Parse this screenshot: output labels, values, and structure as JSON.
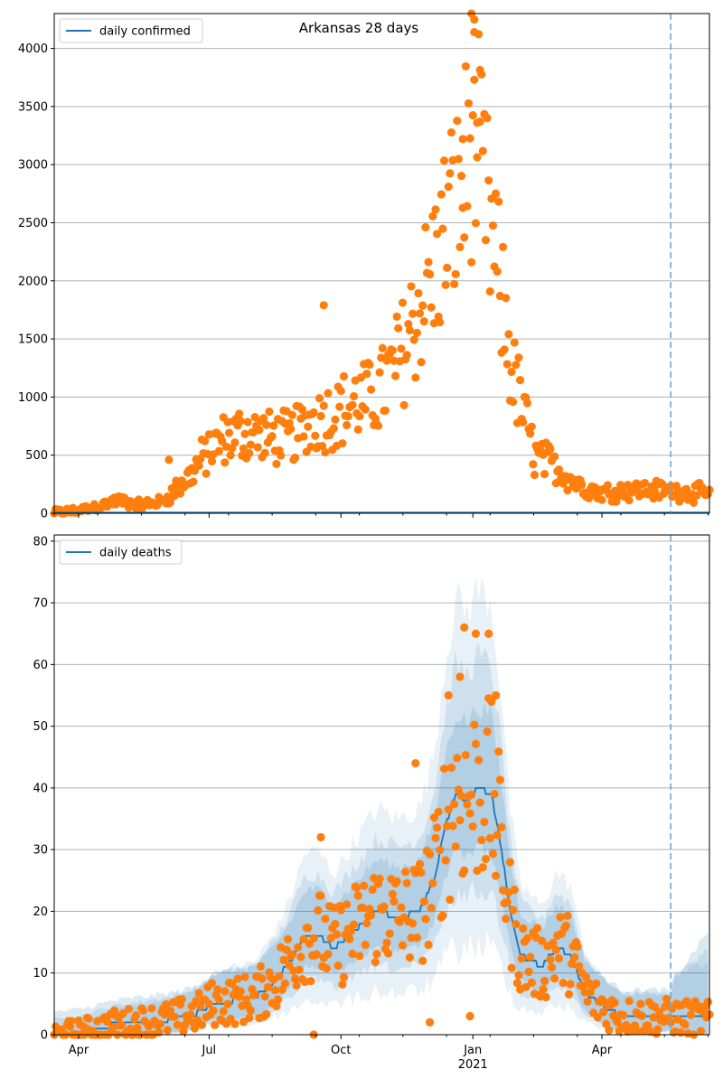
{
  "colors": {
    "line": "#1f77b4",
    "points": "#ff7f0e",
    "band": "#1f77b4",
    "grid": "#b0b0b0",
    "cutoff": "#6fa8d0"
  },
  "chart_data": [
    {
      "type": "scatter",
      "title": "Arkansas 28 days",
      "legend": {
        "label": "daily confirmed",
        "placement": "top-left"
      },
      "ylim": [
        0,
        4300
      ],
      "yticks": [
        0,
        500,
        1000,
        1500,
        2000,
        2500,
        3000,
        3500,
        4000
      ],
      "xticks": [
        {
          "day": 17,
          "label": "Apr"
        },
        {
          "day": 108,
          "label": "Jul"
        },
        {
          "day": 200,
          "label": "Oct"
        },
        {
          "day": 292,
          "label": "Jan",
          "sublabel": "2021"
        },
        {
          "day": 382,
          "label": "Apr"
        }
      ],
      "xlim": [
        0,
        457
      ],
      "cutoff_day": 430,
      "anchors": [
        [
          0,
          5
        ],
        [
          15,
          20
        ],
        [
          30,
          60
        ],
        [
          45,
          110
        ],
        [
          60,
          70
        ],
        [
          75,
          100
        ],
        [
          90,
          250
        ],
        [
          105,
          500
        ],
        [
          120,
          650
        ],
        [
          135,
          700
        ],
        [
          150,
          650
        ],
        [
          165,
          650
        ],
        [
          180,
          800
        ],
        [
          195,
          850
        ],
        [
          210,
          950
        ],
        [
          225,
          1000
        ],
        [
          240,
          1300
        ],
        [
          255,
          1800
        ],
        [
          265,
          2100
        ],
        [
          275,
          2500
        ],
        [
          285,
          2750
        ],
        [
          292,
          3400
        ],
        [
          300,
          2700
        ],
        [
          310,
          2000
        ],
        [
          320,
          1200
        ],
        [
          335,
          500
        ],
        [
          350,
          400
        ],
        [
          365,
          250
        ],
        [
          380,
          180
        ],
        [
          400,
          200
        ],
        [
          420,
          200
        ],
        [
          457,
          170
        ]
      ],
      "outliers": [
        {
          "day": 291,
          "value": 4330
        },
        {
          "day": 293,
          "value": 4140
        },
        {
          "day": 293,
          "value": 3730
        },
        {
          "day": 295,
          "value": 3360
        },
        {
          "day": 297,
          "value": 3370
        },
        {
          "day": 285,
          "value": 3220
        },
        {
          "day": 188,
          "value": 1790
        },
        {
          "day": 80,
          "value": 460
        },
        {
          "day": 85,
          "value": 280
        }
      ]
    },
    {
      "type": "line",
      "legend": {
        "label": "daily deaths",
        "placement": "top-left"
      },
      "ylim": [
        0,
        81
      ],
      "yticks": [
        0,
        10,
        20,
        30,
        40,
        50,
        60,
        70,
        80
      ],
      "xticks": [
        {
          "day": 17,
          "label": "Apr"
        },
        {
          "day": 108,
          "label": "Jul"
        },
        {
          "day": 200,
          "label": "Oct"
        },
        {
          "day": 292,
          "label": "Jan",
          "sublabel": "2021"
        },
        {
          "day": 382,
          "label": "Apr"
        }
      ],
      "xlim": [
        0,
        457
      ],
      "cutoff_day": 430,
      "line": [
        [
          0,
          0
        ],
        [
          20,
          0.5
        ],
        [
          30,
          1
        ],
        [
          40,
          1.5
        ],
        [
          60,
          2
        ],
        [
          80,
          2.5
        ],
        [
          100,
          3.5
        ],
        [
          110,
          5
        ],
        [
          125,
          5.5
        ],
        [
          140,
          6
        ],
        [
          155,
          9
        ],
        [
          165,
          12
        ],
        [
          175,
          16
        ],
        [
          185,
          16
        ],
        [
          195,
          14
        ],
        [
          205,
          16
        ],
        [
          215,
          18
        ],
        [
          225,
          20
        ],
        [
          240,
          19
        ],
        [
          255,
          20
        ],
        [
          265,
          25
        ],
        [
          272,
          33
        ],
        [
          280,
          39
        ],
        [
          288,
          38
        ],
        [
          295,
          40
        ],
        [
          305,
          39
        ],
        [
          312,
          30
        ],
        [
          318,
          20
        ],
        [
          325,
          13
        ],
        [
          340,
          11
        ],
        [
          350,
          14
        ],
        [
          360,
          13
        ],
        [
          370,
          7
        ],
        [
          380,
          5
        ],
        [
          395,
          3
        ],
        [
          420,
          3
        ],
        [
          457,
          2.5
        ]
      ],
      "bands": [
        {
          "level": 1,
          "opacity": 0.1,
          "spread": [
            0.55,
            1.0,
            2.0
          ]
        },
        {
          "level": 2,
          "opacity": 0.13,
          "spread": [
            0.35,
            0.6,
            1.2
          ]
        },
        {
          "level": 3,
          "opacity": 0.16,
          "spread": [
            0.18,
            0.3,
            0.6
          ]
        }
      ],
      "outliers": [
        {
          "day": 286,
          "value": 66
        },
        {
          "day": 294,
          "value": 65
        },
        {
          "day": 303,
          "value": 65
        },
        {
          "day": 283,
          "value": 58
        },
        {
          "day": 275,
          "value": 55
        },
        {
          "day": 308,
          "value": 55
        },
        {
          "day": 186,
          "value": 32
        },
        {
          "day": 252,
          "value": 44
        },
        {
          "day": 290,
          "value": 3
        },
        {
          "day": 262,
          "value": 2
        },
        {
          "day": 181,
          "value": 0
        }
      ]
    }
  ]
}
